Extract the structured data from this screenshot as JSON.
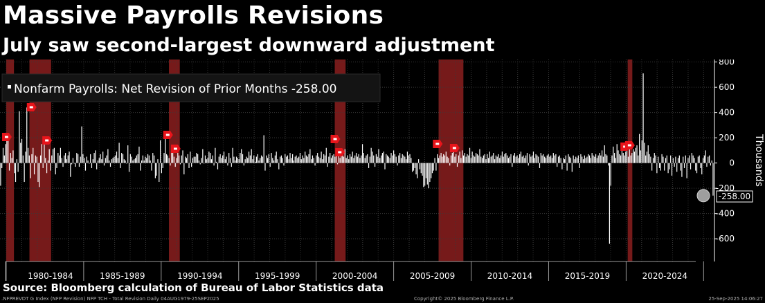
{
  "title": "Massive Payrolls Revisions",
  "subtitle": "July saw second-largest downward adjustment",
  "source": "Source: Bloomberg calculation of Bureau of Labor Statistics data",
  "footer": {
    "left": ".NFPREVDT G Index (NFP Revision) NFP TCH - Total Revision  Daily 04AUG1979-25SEP2025",
    "center": "Copyright© 2025 Bloomberg Finance L.P.",
    "right": "25-Sep-2025 14:06:27"
  },
  "colors": {
    "background": "#000000",
    "bar": "#ffffff",
    "recession": "#8b1e1e",
    "marker": "#e8151b",
    "last_marker": "#bdbdbd",
    "grid": "#3a3a3a"
  },
  "chart_data": {
    "type": "bar",
    "title": "Massive Payrolls Revisions",
    "subtitle": "July saw second-largest downward adjustment",
    "legend": "Nonfarm Payrolls: Net Revision of Prior Months -258.00",
    "legend_position": "top-left",
    "ylabel": "Thousands",
    "ylim": [
      -780,
      820
    ],
    "yticks": [
      800,
      600,
      400,
      200,
      0,
      -200,
      -400,
      -600
    ],
    "xlim": [
      1979.6,
      2025.7
    ],
    "x_period_labels": [
      "1980-1984",
      "1985-1989",
      "1990-1994",
      "1995-1999",
      "2000-2004",
      "2005-2009",
      "2010-2014",
      "2015-2019",
      "2020-2024"
    ],
    "x_period_boundaries": [
      1980,
      1985,
      1990,
      1995,
      2000,
      2005,
      2010,
      2015,
      2020,
      2025
    ],
    "grid": true,
    "last_value": -258.0,
    "last_value_label": "-258.00",
    "recessions": [
      [
        1980.0,
        1980.5
      ],
      [
        1981.5,
        1982.9
      ],
      [
        1990.5,
        1991.2
      ],
      [
        2001.2,
        2001.9
      ],
      [
        2007.9,
        2009.5
      ],
      [
        2020.1,
        2020.4
      ]
    ],
    "marker_years": [
      1980.0,
      1981.6,
      1982.6,
      1990.4,
      1990.9,
      2001.2,
      2001.5,
      2007.8,
      2008.9,
      2019.9,
      2020.2
    ],
    "values": [
      -180,
      -40,
      120,
      60,
      150,
      210,
      180,
      -60,
      80,
      40,
      100,
      -80,
      -150,
      30,
      -70,
      410,
      160,
      190,
      60,
      -150,
      90,
      440,
      120,
      60,
      -120,
      70,
      120,
      -90,
      60,
      50,
      -150,
      -190,
      60,
      150,
      -40,
      170,
      40,
      -80,
      20,
      110,
      -60,
      60,
      110,
      120,
      -90,
      -40,
      80,
      60,
      120,
      40,
      -30,
      60,
      80,
      30,
      60,
      90,
      -110,
      -10,
      40,
      0,
      -30,
      80,
      70,
      -30,
      50,
      290,
      70,
      40,
      -60,
      50,
      20,
      0,
      70,
      -40,
      30,
      80,
      100,
      -50,
      20,
      40,
      70,
      30,
      90,
      -20,
      40,
      60,
      110,
      20,
      -30,
      30,
      40,
      50,
      60,
      90,
      40,
      160,
      -40,
      80,
      70,
      30,
      20,
      0,
      140,
      -70,
      70,
      50,
      20,
      30,
      40,
      60,
      70,
      130,
      -60,
      20,
      60,
      20,
      50,
      40,
      70,
      60,
      20,
      -60,
      80,
      60,
      -120,
      -100,
      30,
      -150,
      180,
      -80,
      -40,
      80,
      200,
      70,
      60,
      40,
      -20,
      90,
      100,
      50,
      -30,
      40,
      80,
      60,
      -10,
      60,
      100,
      -90,
      50,
      40,
      70,
      -40,
      90,
      -30,
      40,
      50,
      50,
      80,
      70,
      20,
      -10,
      40,
      110,
      0,
      60,
      30,
      40,
      90,
      80,
      30,
      60,
      -20,
      120,
      10,
      -50,
      50,
      70,
      40,
      60,
      90,
      30,
      50,
      -20,
      80,
      40,
      -30,
      120,
      50,
      20,
      50,
      40,
      30,
      80,
      110,
      70,
      -20,
      30,
      50,
      40,
      90,
      60,
      110,
      30,
      60,
      10,
      50,
      70,
      20,
      40,
      60,
      50,
      220,
      -60,
      60,
      40,
      70,
      -30,
      80,
      40,
      20,
      60,
      90,
      30,
      -50,
      50,
      60,
      40,
      -20,
      70,
      50,
      60,
      30,
      80,
      40,
      70,
      20,
      50,
      60,
      40,
      50,
      80,
      30,
      60,
      40,
      90,
      60,
      50,
      70,
      110,
      30,
      60,
      40,
      -20,
      60,
      80,
      50,
      40,
      90,
      30,
      70,
      60,
      120,
      -30,
      50,
      80,
      40,
      60,
      70,
      50,
      90,
      -10,
      60,
      40,
      80,
      70,
      50,
      110,
      40,
      60,
      30,
      70,
      50,
      90,
      40,
      60,
      80,
      50,
      70,
      40,
      60,
      150,
      80,
      40,
      60,
      70,
      -40,
      50,
      120,
      90,
      60,
      -30,
      70,
      50,
      110,
      40,
      60,
      80,
      90,
      -50,
      70,
      60,
      50,
      40,
      80,
      60,
      100,
      70,
      50,
      -20,
      60,
      80,
      40,
      70,
      60,
      50,
      30,
      90,
      60,
      70,
      40,
      -70,
      -60,
      -40,
      -90,
      -120,
      30,
      -50,
      -80,
      -100,
      -190,
      -180,
      -120,
      -170,
      -200,
      -150,
      -120,
      -80,
      -60,
      40,
      -60,
      70,
      40,
      60,
      80,
      50,
      70,
      60,
      90,
      50,
      40,
      -20,
      60,
      80,
      140,
      50,
      70,
      -30,
      60,
      90,
      40,
      100,
      60,
      80,
      50,
      70,
      60,
      120,
      40,
      90,
      60,
      50,
      80,
      70,
      60,
      110,
      50,
      40,
      60,
      70,
      30,
      70,
      40,
      90,
      50,
      60,
      80,
      30,
      60,
      50,
      70,
      40,
      60,
      90,
      50,
      70,
      80,
      60,
      40,
      50,
      70,
      -30,
      60,
      80,
      50,
      60,
      40,
      70,
      90,
      50,
      60,
      40,
      60,
      80,
      -20,
      70,
      50,
      60,
      90,
      40,
      70,
      60,
      50,
      -40,
      80,
      60,
      70,
      50,
      40,
      60,
      70,
      50,
      60,
      40,
      80,
      60,
      70,
      -30,
      50,
      60,
      40,
      -50,
      40,
      30,
      60,
      -60,
      70,
      50,
      40,
      -70,
      60,
      30,
      50,
      40,
      60,
      -40,
      70,
      50,
      30,
      60,
      40,
      50,
      70,
      60,
      40,
      80,
      60,
      50,
      70,
      40,
      60,
      80,
      60,
      100,
      50,
      140,
      70,
      60,
      -20,
      -640,
      -180,
      60,
      130,
      80,
      40,
      150,
      100,
      70,
      60,
      110,
      80,
      60,
      90,
      170,
      50,
      120,
      60,
      80,
      110,
      90,
      120,
      140,
      60,
      230,
      100,
      180,
      710,
      160,
      60,
      90,
      140,
      70,
      50,
      -60,
      40,
      80,
      60,
      -80,
      50,
      -40,
      -60,
      70,
      50,
      -60,
      40,
      60,
      -80,
      -50,
      60,
      -100,
      40,
      -30,
      50,
      -70,
      40,
      60,
      -60,
      -110,
      50,
      -40,
      60,
      -120,
      40,
      60,
      -50,
      80,
      60,
      40,
      -60,
      -80,
      50,
      60,
      -40,
      -90,
      40,
      60,
      100,
      -30,
      50,
      60,
      -20,
      20,
      -258
    ]
  }
}
